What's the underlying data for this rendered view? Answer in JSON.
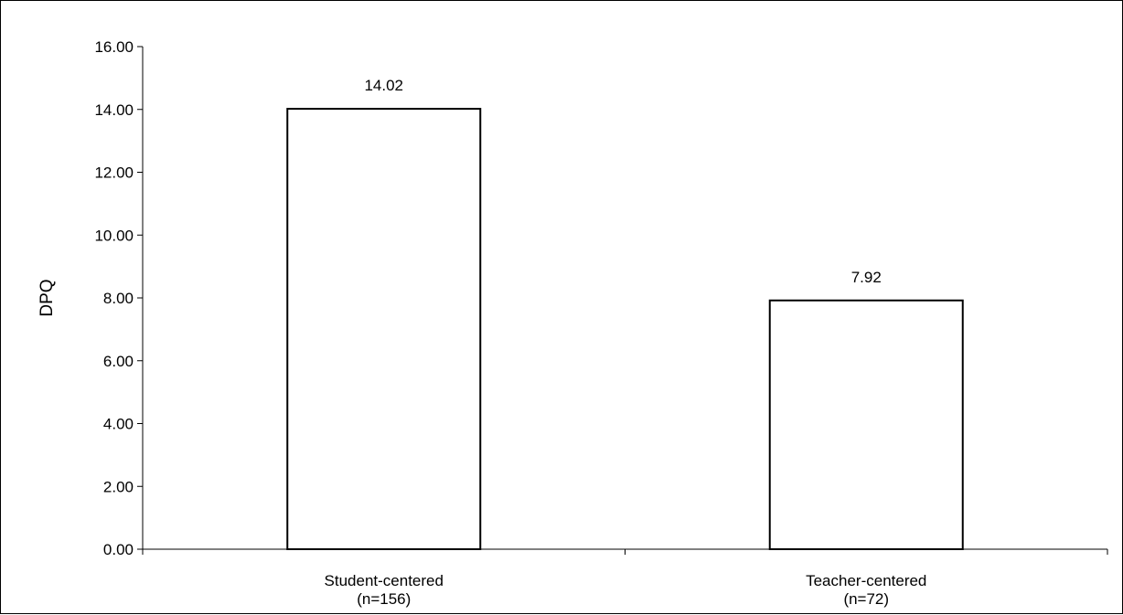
{
  "chart_data": {
    "type": "bar",
    "categories": [
      [
        "Student-centered",
        "(n=156)"
      ],
      [
        "Teacher-centered",
        "(n=72)"
      ]
    ],
    "values": [
      14.02,
      7.92
    ],
    "data_labels": [
      "14.02",
      "7.92"
    ],
    "ylabel": "DPQ",
    "xlabel": "",
    "ylim": [
      0,
      16
    ],
    "y_ticks": [
      0,
      2,
      4,
      6,
      8,
      10,
      12,
      14,
      16
    ],
    "y_tick_labels": [
      "0.00",
      "2.00",
      "4.00",
      "6.00",
      "8.00",
      "10.00",
      "12.00",
      "14.00",
      "16.00"
    ],
    "grid": false,
    "legend": "none",
    "colors": {
      "bar_fill": "#ffffff",
      "bar_stroke": "#000000",
      "axis": "#000000",
      "text": "#000000"
    }
  }
}
